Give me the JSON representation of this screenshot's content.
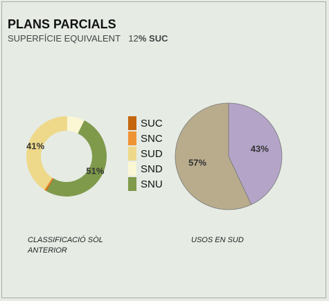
{
  "header": {
    "title": "PLANS PARCIALS",
    "subtitle": "SUPERFÍCIE EQUIVALENT",
    "highlight_number": "12",
    "highlight_unit": "% SUC"
  },
  "chart_data": [
    {
      "type": "donut",
      "title": "CLASSIFICACIÓ SÒL ANTERIOR",
      "categories": [
        "SUC",
        "SNC",
        "SUD",
        "SND",
        "SNU"
      ],
      "values": [
        0.5,
        0.5,
        41,
        7,
        51
      ],
      "value_labels": [
        null,
        null,
        "41%",
        null,
        "51%"
      ],
      "colors": [
        "#c5660e",
        "#ef9433",
        "#eed98b",
        "#fbf6d4",
        "#7f9a4b"
      ],
      "legend": "right"
    },
    {
      "type": "pie",
      "title": "USOS EN SUD",
      "categories": [
        null,
        null
      ],
      "values": [
        43,
        57
      ],
      "value_labels": [
        "43%",
        "57%"
      ],
      "colors": [
        "#b3a4c8",
        "#b8ac8d"
      ]
    }
  ]
}
